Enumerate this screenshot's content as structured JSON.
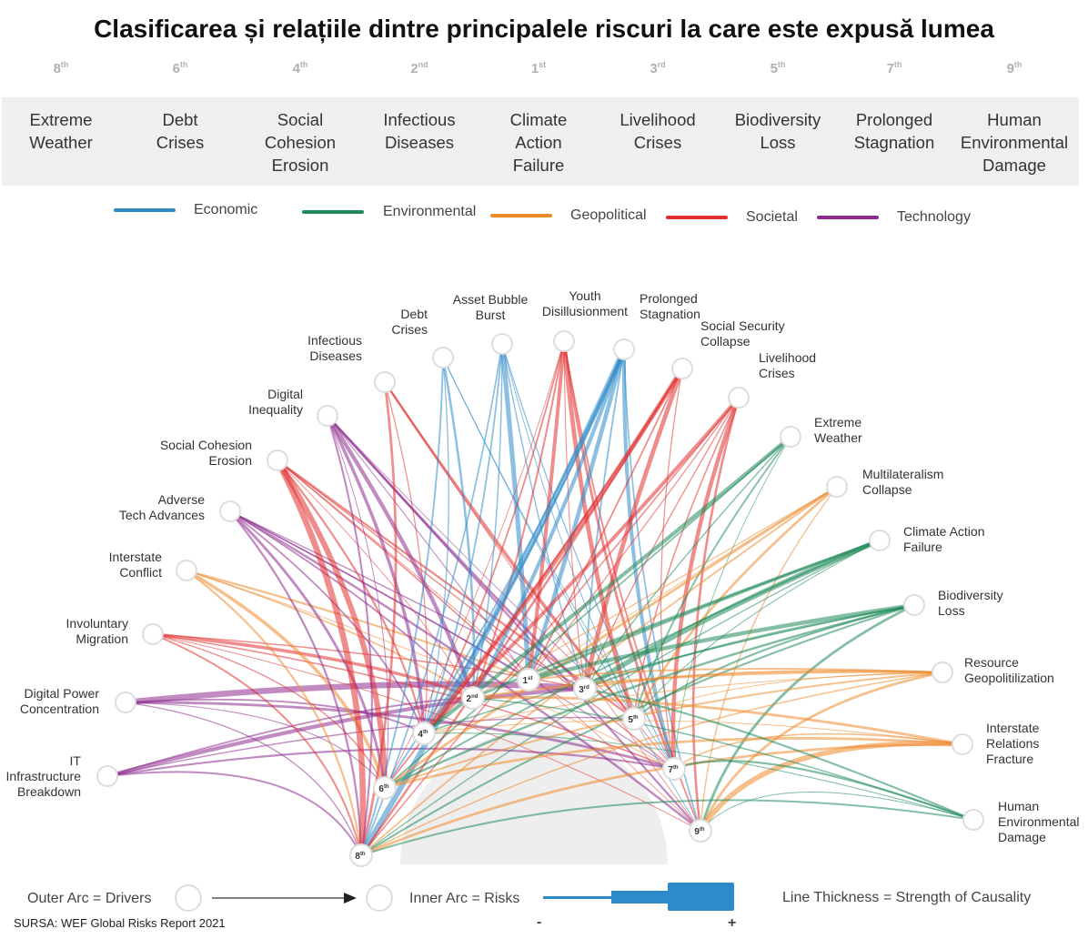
{
  "title": "Clasificarea și relațiile dintre principalele riscuri la care este expusă lumea",
  "top_risks": [
    {
      "rank_num": "8",
      "rank_suffix": "th",
      "label": "Extreme\nWeather"
    },
    {
      "rank_num": "6",
      "rank_suffix": "th",
      "label": "Debt\nCrises"
    },
    {
      "rank_num": "4",
      "rank_suffix": "th",
      "label": "Social\nCohesion\nErosion"
    },
    {
      "rank_num": "2",
      "rank_suffix": "nd",
      "label": "Infectious\nDiseases"
    },
    {
      "rank_num": "1",
      "rank_suffix": "st",
      "label": "Climate\nAction\nFailure"
    },
    {
      "rank_num": "3",
      "rank_suffix": "rd",
      "label": "Livelihood\nCrises"
    },
    {
      "rank_num": "5",
      "rank_suffix": "th",
      "label": "Biodiversity\nLoss"
    },
    {
      "rank_num": "7",
      "rank_suffix": "th",
      "label": "Prolonged\nStagnation"
    },
    {
      "rank_num": "9",
      "rank_suffix": "th",
      "label": "Human\nEnvironmental\nDamage"
    }
  ],
  "legend": [
    {
      "label": "Economic",
      "color": "#2e8bc9"
    },
    {
      "label": "Environmental",
      "color": "#1f8a5a"
    },
    {
      "label": "Geopolitical",
      "color": "#ee8a2e"
    },
    {
      "label": "Societal",
      "color": "#e0302e"
    },
    {
      "label": "Technology",
      "color": "#8e2b8e"
    }
  ],
  "drivers": [
    {
      "label": "IT\nInfrastructure\nBreakdown",
      "category": "Technology"
    },
    {
      "label": "Digital Power\nConcentration",
      "category": "Technology"
    },
    {
      "label": "Involuntary\nMigration",
      "category": "Societal"
    },
    {
      "label": "Interstate\nConflict",
      "category": "Geopolitical"
    },
    {
      "label": "Adverse\nTech Advances",
      "category": "Technology"
    },
    {
      "label": "Social Cohesion\nErosion",
      "category": "Societal"
    },
    {
      "label": "Digital\nInequality",
      "category": "Technology"
    },
    {
      "label": "Infectious\nDiseases",
      "category": "Societal"
    },
    {
      "label": "Debt\nCrises",
      "category": "Economic"
    },
    {
      "label": "Asset Bubble\nBurst",
      "category": "Economic"
    },
    {
      "label": "Youth\nDisillusionment",
      "category": "Societal"
    },
    {
      "label": "Prolonged\nStagnation",
      "category": "Economic"
    },
    {
      "label": "Social Security\nCollapse",
      "category": "Societal"
    },
    {
      "label": "Livelihood\nCrises",
      "category": "Societal"
    },
    {
      "label": "Extreme\nWeather",
      "category": "Environmental"
    },
    {
      "label": "Multilateralism\nCollapse",
      "category": "Geopolitical"
    },
    {
      "label": "Climate Action\nFailure",
      "category": "Environmental"
    },
    {
      "label": "Biodiversity\nLoss",
      "category": "Environmental"
    },
    {
      "label": "Resource\nGeopolitilization",
      "category": "Geopolitical"
    },
    {
      "label": "Interstate\nRelations\nFracture",
      "category": "Geopolitical"
    },
    {
      "label": "Human\nEnvironmental\nDamage",
      "category": "Environmental"
    }
  ],
  "inner_risks": [
    {
      "num": "8",
      "suffix": "th"
    },
    {
      "num": "6",
      "suffix": "th"
    },
    {
      "num": "4",
      "suffix": "th"
    },
    {
      "num": "2",
      "suffix": "nd"
    },
    {
      "num": "1",
      "suffix": "st"
    },
    {
      "num": "3",
      "suffix": "rd"
    },
    {
      "num": "5",
      "suffix": "th"
    },
    {
      "num": "7",
      "suffix": "th"
    },
    {
      "num": "9",
      "suffix": "th"
    }
  ],
  "footer": {
    "outer_arc": "Outer Arc = Drivers",
    "inner_arc": "Inner Arc = Risks",
    "thickness": "Line Thickness = Strength of Causality",
    "minus": "-",
    "plus": "+"
  },
  "source": "SURSA: WEF Global Risks Report 2021"
}
